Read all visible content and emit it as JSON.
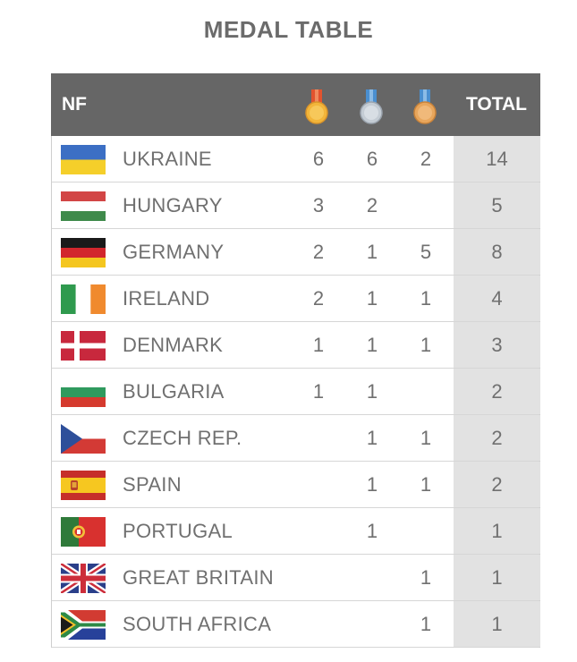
{
  "title": "MEDAL TABLE",
  "header": {
    "nf": "NF",
    "total": "TOTAL",
    "medal_icons": [
      "gold-medal-icon",
      "silver-medal-icon",
      "bronze-medal-icon"
    ]
  },
  "colors": {
    "header_bg": "#666666",
    "total_bg": "#e2e2e2",
    "text": "#707070",
    "gold": "#f2b53a",
    "silver": "#c4ccd4",
    "bronze": "#e8a65c",
    "ribbon_red": "#e2532e",
    "ribbon_blue": "#4a8fd0"
  },
  "rows": [
    {
      "flag": "ukraine-flag-icon",
      "country": "UKRAINE",
      "gold": "6",
      "silver": "6",
      "bronze": "2",
      "total": "14"
    },
    {
      "flag": "hungary-flag-icon",
      "country": "HUNGARY",
      "gold": "3",
      "silver": "2",
      "bronze": "",
      "total": "5"
    },
    {
      "flag": "germany-flag-icon",
      "country": "GERMANY",
      "gold": "2",
      "silver": "1",
      "bronze": "5",
      "total": "8"
    },
    {
      "flag": "ireland-flag-icon",
      "country": "IRELAND",
      "gold": "2",
      "silver": "1",
      "bronze": "1",
      "total": "4"
    },
    {
      "flag": "denmark-flag-icon",
      "country": "DENMARK",
      "gold": "1",
      "silver": "1",
      "bronze": "1",
      "total": "3"
    },
    {
      "flag": "bulgaria-flag-icon",
      "country": "BULGARIA",
      "gold": "1",
      "silver": "1",
      "bronze": "",
      "total": "2"
    },
    {
      "flag": "czech-flag-icon",
      "country": "CZECH REP.",
      "gold": "",
      "silver": "1",
      "bronze": "1",
      "total": "2"
    },
    {
      "flag": "spain-flag-icon",
      "country": "SPAIN",
      "gold": "",
      "silver": "1",
      "bronze": "1",
      "total": "2"
    },
    {
      "flag": "portugal-flag-icon",
      "country": "PORTUGAL",
      "gold": "",
      "silver": "1",
      "bronze": "",
      "total": "1"
    },
    {
      "flag": "great-britain-flag-icon",
      "country": "GREAT BRITAIN",
      "gold": "",
      "silver": "",
      "bronze": "1",
      "total": "1"
    },
    {
      "flag": "south-africa-flag-icon",
      "country": "SOUTH AFRICA",
      "gold": "",
      "silver": "",
      "bronze": "1",
      "total": "1"
    }
  ]
}
